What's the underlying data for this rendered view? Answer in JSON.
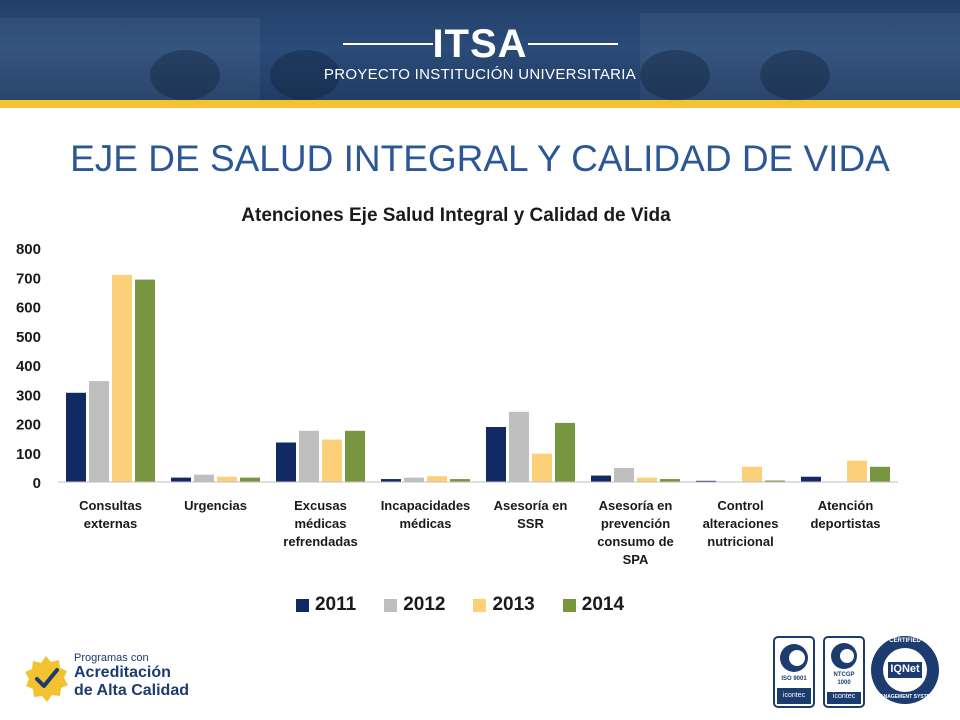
{
  "header": {
    "brand": "ITSA",
    "subtitle": "PROYECTO INSTITUCIÓN UNIVERSITARIA"
  },
  "page_title": "EJE DE SALUD INTEGRAL Y CALIDAD DE VIDA",
  "chart_data": {
    "type": "bar",
    "title": "Atenciones Eje Salud Integral y Calidad de Vida",
    "xlabel": "",
    "ylabel": "",
    "ylim": [
      0,
      800
    ],
    "yticks": [
      0,
      100,
      200,
      300,
      400,
      500,
      600,
      700,
      800
    ],
    "grid": false,
    "legend_position": "bottom",
    "categories": [
      [
        "Consultas",
        "externas"
      ],
      [
        "Urgencias"
      ],
      [
        "Excusas",
        "médicas",
        "refrendadas"
      ],
      [
        "Incapacidades",
        "médicas"
      ],
      [
        "Asesoría en",
        "SSR"
      ],
      [
        "Asesoría en",
        "prevención",
        "consumo de",
        "SPA"
      ],
      [
        "Control",
        "alteraciones",
        "nutricional"
      ],
      [
        "Atención",
        "deportistas"
      ]
    ],
    "series": [
      {
        "name": "2011",
        "color": "#112a63",
        "values": [
          305,
          15,
          135,
          10,
          188,
          22,
          4,
          18
        ]
      },
      {
        "name": "2012",
        "color": "#bfbfbf",
        "values": [
          345,
          25,
          175,
          15,
          240,
          48,
          0,
          0
        ]
      },
      {
        "name": "2013",
        "color": "#fcd079",
        "values": [
          708,
          18,
          145,
          20,
          97,
          15,
          52,
          73
        ]
      },
      {
        "name": "2014",
        "color": "#789640",
        "values": [
          692,
          15,
          175,
          10,
          202,
          10,
          5,
          52
        ]
      }
    ]
  },
  "footer": {
    "program_line1": "Programas con",
    "program_line2": "Acreditación",
    "program_line3": "de Alta Calidad",
    "cert1_line": "ISO 9001",
    "cert1_brand": "icontec",
    "cert2_line1": "NTCGP",
    "cert2_line2": "1000",
    "cert2_brand": "icontec",
    "iqnet_top": "CERTIFIED",
    "iqnet_logo": "IQNet",
    "iqnet_bottom": "MANAGEMENT SYSTEM",
    "accent_color": "#f2c230",
    "brand_color": "#1c3b6e",
    "cert_icons": [
      "icontec-logo-icon",
      "icontec-logo-icon",
      "iqnet-seal-icon"
    ]
  }
}
